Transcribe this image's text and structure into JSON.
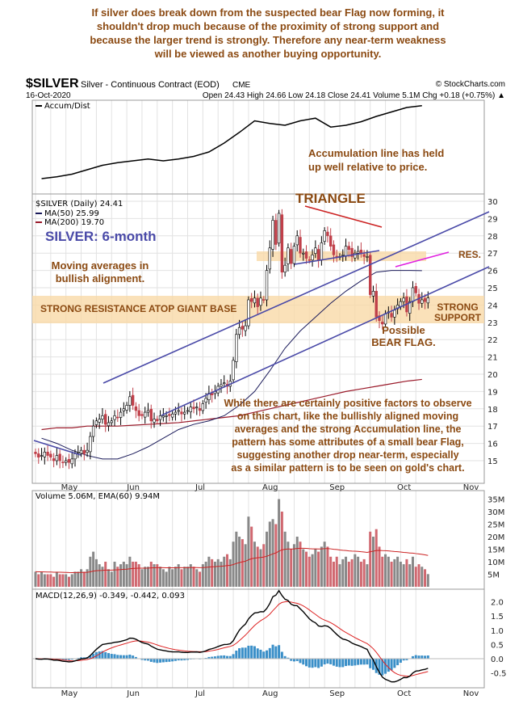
{
  "top_note": [
    "If silver does break down from the suspected bear Flag now forming, it",
    "shouldn't drop much because of the proximity of strong support and",
    "because the larger trend is strongly. Therefore any near-term weakness",
    "will be viewed as another buying opportunity."
  ],
  "header": {
    "symbol": "$SILVER",
    "name": "Silver - Continuous Contract (EOD)",
    "exchange": "CME",
    "credit": "© StockCharts.com",
    "date": "16-Oct-2020",
    "quote": "Open 24.43  High 24.66  Low 24.18  Close 24.41  Volume 5.1M  Chg +0.18 (+0.75%) ▲"
  },
  "colors": {
    "annotation": "#8b4a12",
    "title": "#4a4aa8",
    "channel": "#4a4aa8",
    "ma50": "#1a1a5a",
    "ma200": "#9a1a2a",
    "up": "#ffffff",
    "down": "#c0404a",
    "band": "#f9d9a8",
    "triangle_top": "#cc2222",
    "flag": "#e020e0",
    "volume_down": "#d06870",
    "volume_up": "#888888",
    "macd_hist": "#3a8fc8"
  },
  "chart_data": [
    {
      "type": "line",
      "panel": "accum-dist",
      "legend": "Accum/Dist",
      "frequency": "weekly, relative scale",
      "values": [
        10,
        12,
        15,
        20,
        25,
        28,
        30,
        32,
        30,
        32,
        35,
        40,
        50,
        62,
        75,
        72,
        70,
        75,
        78,
        68,
        70,
        74,
        80,
        85,
        90,
        92
      ]
    },
    {
      "type": "candlestick",
      "panel": "price",
      "legend": [
        "$SILVER (Daily) 24.41",
        "MA(50) 25.99",
        "MA(200) 19.70"
      ],
      "start_date": "2020-04-20",
      "closes": [
        15.4,
        15.2,
        15.3,
        15.5,
        15.3,
        15.2,
        15.0,
        15.3,
        15.0,
        14.9,
        15.0,
        14.9,
        15.1,
        15.4,
        15.5,
        15.6,
        15.4,
        15.6,
        16.4,
        17.0,
        17.3,
        17.4,
        17.6,
        17.1,
        17.2,
        17.3,
        17.6,
        17.5,
        17.8,
        18.0,
        18.2,
        18.7,
        18.2,
        17.9,
        17.6,
        17.6,
        17.8,
        17.9,
        17.3,
        17.4,
        17.3,
        17.6,
        17.6,
        17.6,
        17.6,
        17.7,
        17.8,
        17.9,
        17.7,
        17.8,
        17.9,
        18.1,
        18.0,
        18.1,
        17.9,
        18.3,
        18.6,
        18.9,
        18.8,
        19.0,
        19.3,
        19.4,
        19.5,
        19.3,
        19.6,
        20.8,
        22.3,
        22.7,
        22.6,
        22.8,
        24.3,
        24.2,
        24.4,
        23.9,
        24.4,
        24.3,
        26.0,
        27.3,
        28.9,
        27.5,
        29.3,
        25.9,
        26.3,
        27.3,
        26.4,
        27.4,
        28.0,
        27.0,
        27.0,
        26.7,
        26.6,
        26.9,
        27.3,
        26.6,
        27.6,
        28.3,
        28.0,
        27.4,
        26.9,
        26.8,
        26.8,
        26.9,
        27.4,
        27.2,
        26.8,
        27.0,
        27.1,
        27.0,
        26.8,
        26.8,
        24.6,
        24.8,
        23.3,
        23.1,
        22.9,
        23.5,
        23.6,
        23.3,
        23.7,
        24.0,
        24.2,
        24.4,
        23.6,
        24.2,
        25.0,
        24.7,
        24.1,
        24.3,
        24.2,
        24.41
      ],
      "ma50_weekly": [
        16.3,
        16.0,
        15.6,
        15.3,
        15.1,
        15.1,
        15.4,
        15.8,
        16.3,
        16.8,
        17.1,
        17.3,
        17.6,
        18.2,
        19.0,
        20.2,
        21.5,
        22.5,
        23.3,
        24.1,
        24.8,
        25.4,
        25.9,
        26.0,
        26.0,
        25.99
      ],
      "ma200_weekly": [
        16.8,
        16.9,
        16.9,
        17.0,
        17.0,
        17.0,
        17.05,
        17.1,
        17.15,
        17.2,
        17.3,
        17.4,
        17.5,
        17.6,
        17.8,
        18.0,
        18.2,
        18.4,
        18.6,
        18.8,
        19.0,
        19.15,
        19.3,
        19.45,
        19.6,
        19.7
      ],
      "ylim": [
        14.5,
        30.5
      ],
      "yticks": [
        "15",
        "16",
        "17",
        "18",
        "19",
        "20",
        "21",
        "22",
        "23",
        "24",
        "25",
        "26",
        "27",
        "28",
        "29",
        "30"
      ],
      "xticks": [
        "May",
        "Jun",
        "Jul",
        "Aug",
        "Sep",
        "Oct",
        "Nov"
      ]
    },
    {
      "type": "bar",
      "panel": "volume",
      "legend": "Volume 5.06M, EMA(60) 9.94M",
      "unit": "M",
      "values": [
        6,
        5,
        6,
        5,
        5,
        5,
        4,
        6,
        5,
        5,
        5,
        4,
        5,
        6,
        6,
        7,
        6,
        7,
        12,
        14,
        11,
        9,
        8,
        10,
        7,
        6,
        10,
        8,
        9,
        10,
        9,
        12,
        10,
        10,
        9,
        7,
        8,
        8,
        10,
        9,
        9,
        8,
        7,
        6,
        8,
        7,
        8,
        9,
        7,
        8,
        8,
        9,
        8,
        7,
        6,
        9,
        10,
        12,
        11,
        10,
        11,
        10,
        12,
        13,
        11,
        18,
        22,
        20,
        19,
        17,
        28,
        24,
        18,
        16,
        15,
        17,
        22,
        26,
        27,
        25,
        35,
        30,
        22,
        18,
        15,
        17,
        20,
        18,
        15,
        14,
        12,
        13,
        15,
        14,
        16,
        18,
        16,
        12,
        10,
        12,
        9,
        11,
        12,
        10,
        11,
        13,
        12,
        10,
        11,
        9,
        22,
        20,
        23,
        16,
        12,
        13,
        12,
        10,
        11,
        12,
        10,
        9,
        11,
        9,
        12,
        8,
        9,
        8,
        7,
        5.06
      ],
      "yticks": [
        "5M",
        "10M",
        "15M",
        "20M",
        "25M",
        "30M",
        "35M"
      ]
    },
    {
      "type": "line",
      "panel": "macd",
      "legend": "MACD(12,26,9) -0.349, -0.442, 0.093",
      "yticks": [
        "-0.5",
        "0.0",
        "0.5",
        "1.0",
        "1.5",
        "2.0"
      ],
      "xticks": [
        "May",
        "Jun",
        "Jul",
        "Aug",
        "Sep",
        "Oct",
        "Nov"
      ]
    }
  ],
  "annotations": {
    "accum": [
      "Accumulation line has held",
      "up well relative to price."
    ],
    "title": "SILVER: 6-month",
    "ma": [
      "Moving averages in",
      "bullish alignment."
    ],
    "triangle": "TRIANGLE",
    "res": "RES.",
    "resistance": "STRONG RESISTANCE ATOP GIANT BASE",
    "support": [
      "STRONG",
      "SUPPORT"
    ],
    "flag": [
      "Possible",
      "BEAR FLAG."
    ],
    "comment": [
      "While there are certainly positive factors to observe",
      "on this chart, like the bullishly aligned moving",
      "averages and the strong Accumulation line, the",
      "pattern has some attributes of a small bear Flag,",
      "suggesting another drop near-term, especially",
      "as a similar pattern is to be seen on gold's chart."
    ]
  }
}
